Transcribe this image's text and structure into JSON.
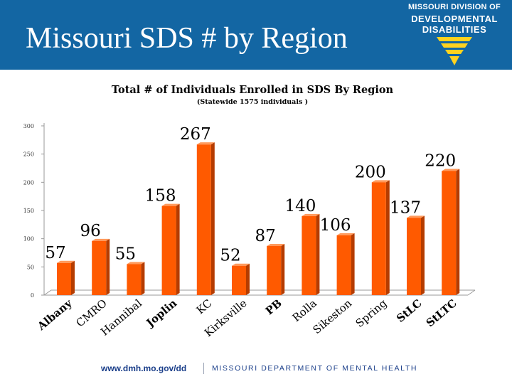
{
  "header": {
    "title": "Missouri SDS # by Region"
  },
  "logo": {
    "line1": "MISSOURI DIVISION OF",
    "line2": "DEVELOPMENTAL",
    "line3": "DISABILITIES"
  },
  "colors": {
    "header_bg": "#1366a3",
    "bar": "#ff5a00",
    "bar_side": "#b53c00",
    "bar_top": "#ff9a5c",
    "logo_yellow": "#ffd21f",
    "footer_text": "#1b3f8a"
  },
  "footer": {
    "url": "www.dmh.mo.gov/dd",
    "department": "MISSOURI DEPARTMENT OF MENTAL HEALTH"
  },
  "chart_data": {
    "type": "bar",
    "title": "Total # of Individuals Enrolled in SDS By Region",
    "subtitle": "(Statewide 1575 individuals )",
    "xlabel": "",
    "ylabel": "",
    "ylim": [
      0,
      300
    ],
    "yticks": [
      0,
      50,
      100,
      150,
      200,
      250,
      300
    ],
    "grid": false,
    "categories": [
      "Albany",
      "CMRO",
      "Hannibal",
      "Joplin",
      "KC",
      "Kirksville",
      "PB",
      "Rolla",
      "Sikeston",
      "Spring",
      "StLC",
      "StLTC"
    ],
    "values": [
      57,
      96,
      55,
      158,
      267,
      52,
      87,
      140,
      106,
      200,
      137,
      220
    ],
    "bold_categories": [
      "Albany",
      "Joplin",
      "PB",
      "StLC",
      "StLTC"
    ]
  }
}
